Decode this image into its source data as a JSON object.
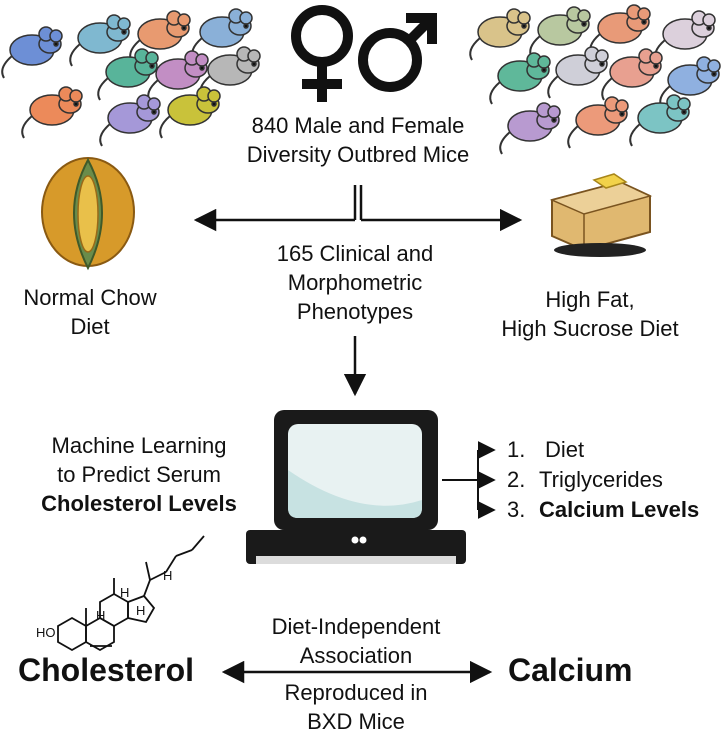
{
  "top": {
    "title_line1": "840 Male and Female",
    "title_line2": "Diversity Outbred Mice"
  },
  "left_diet": {
    "line1": "Normal Chow",
    "line2": "Diet"
  },
  "right_diet": {
    "line1": "High Fat,",
    "line2": "High Sucrose Diet"
  },
  "phenotypes": {
    "line1": "165 Clinical and",
    "line2": "Morphometric",
    "line3": "Phenotypes"
  },
  "ml": {
    "line1": "Machine Learning",
    "line2": "to Predict Serum",
    "line3": "Cholesterol Levels"
  },
  "outputs": [
    {
      "num": "1.",
      "label": "Diet"
    },
    {
      "num": "2.",
      "label": "Triglycerides"
    },
    {
      "num": "3.",
      "label": "Calcium Levels"
    }
  ],
  "association": {
    "line1": "Diet-Independent",
    "line2": "Association"
  },
  "reproduced": {
    "line1": "Reproduced in",
    "line2": "BXD Mice"
  },
  "cholesterol": "Cholesterol",
  "calcium": "Calcium",
  "molecule": {
    "h1": "H",
    "h2": "H",
    "h3": "H",
    "h4": "H",
    "ho": "HO"
  },
  "colors": {
    "ink": "#111111",
    "screen": "#e8f2f2",
    "screen_curve": "#c7e2e2",
    "corn": "#d79a2a",
    "cake": "#e0b870",
    "butter": "#f2d24a"
  }
}
